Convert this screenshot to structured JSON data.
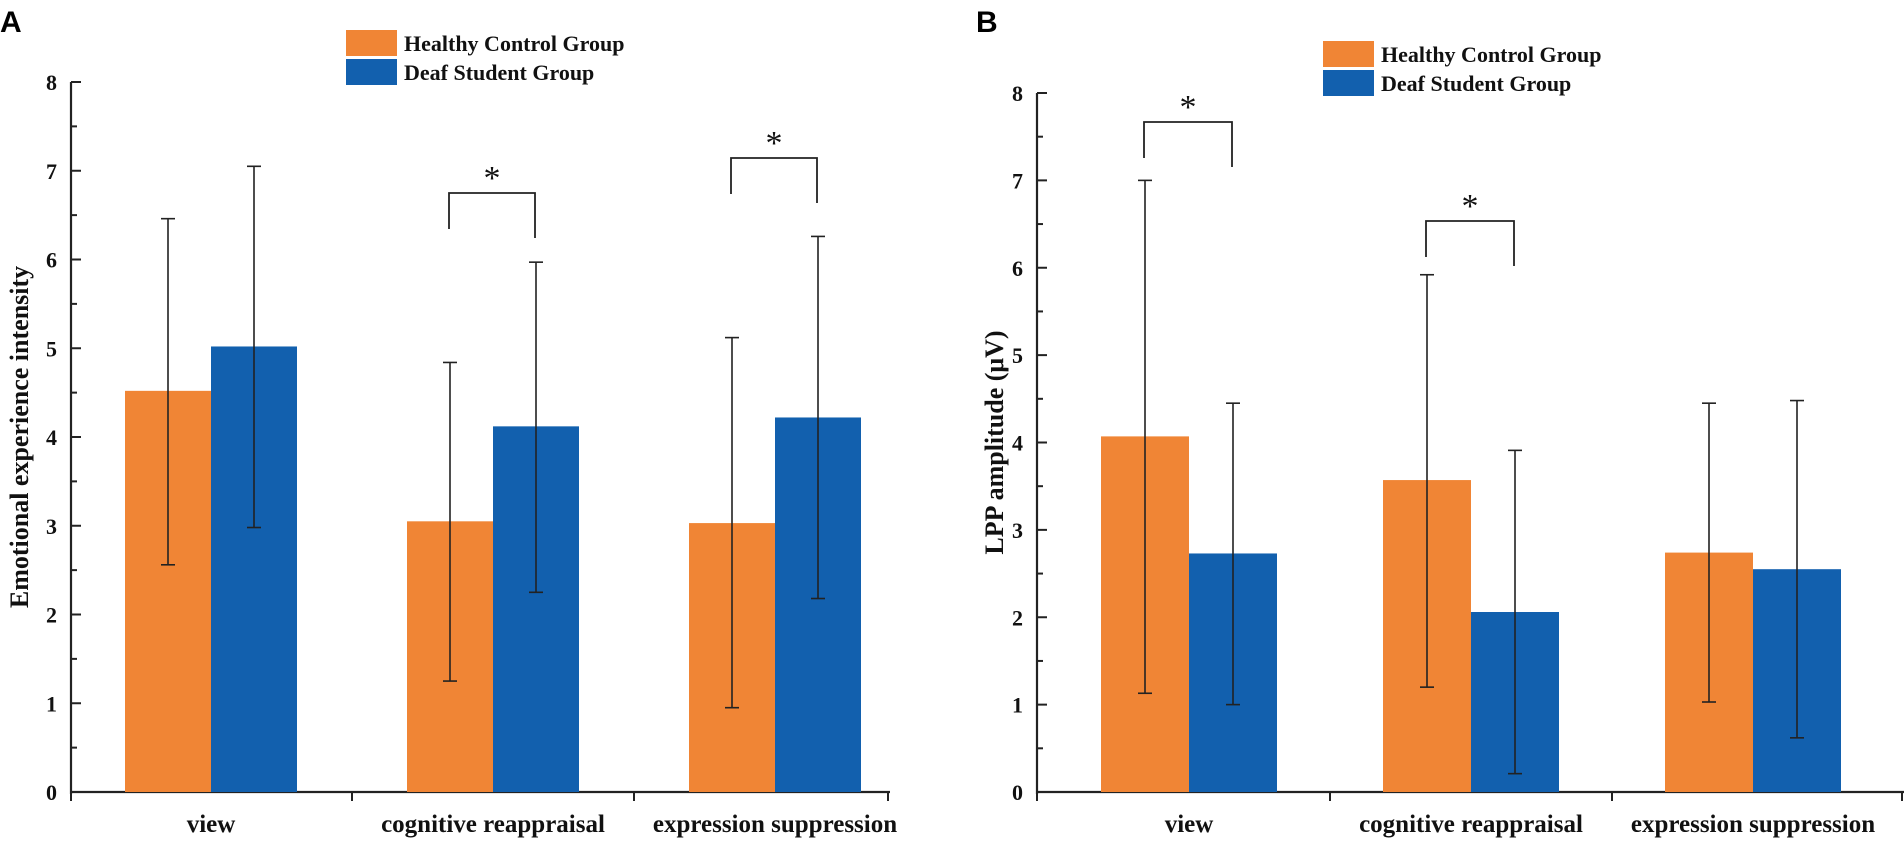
{
  "colors": {
    "healthy": "#F08535",
    "deaf": "#1260AE"
  },
  "chart_data": [
    {
      "panel": "A",
      "type": "bar",
      "title": "",
      "xlabel": "",
      "ylabel": "Emotional experience intensity",
      "ylim": [
        0,
        8
      ],
      "yticks": [
        0,
        1,
        2,
        3,
        4,
        5,
        6,
        7,
        8
      ],
      "categories": [
        "view",
        "cognitive reappraisal",
        "expression suppression"
      ],
      "legend": [
        "Healthy Control Group",
        "Deaf Student Group"
      ],
      "legend_position": "top-center",
      "series": [
        {
          "name": "Healthy Control Group",
          "values": [
            4.52,
            3.05,
            3.03
          ],
          "err_low": [
            2.56,
            1.25,
            0.95
          ],
          "err_high": [
            6.46,
            4.84,
            5.12
          ]
        },
        {
          "name": "Deaf Student Group",
          "values": [
            5.02,
            4.12,
            4.22
          ],
          "err_low": [
            2.98,
            2.25,
            2.18
          ],
          "err_high": [
            7.05,
            5.97,
            6.26
          ]
        }
      ],
      "significance": [
        {
          "category": 1,
          "label": "*"
        },
        {
          "category": 2,
          "label": "*"
        }
      ]
    },
    {
      "panel": "B",
      "type": "bar",
      "title": "",
      "xlabel": "",
      "ylabel": "LPP amplitude (μV)",
      "ylim": [
        0,
        8
      ],
      "yticks": [
        0,
        1,
        2,
        3,
        4,
        5,
        6,
        7,
        8
      ],
      "categories": [
        "view",
        "cognitive reappraisal",
        "expression suppression"
      ],
      "legend": [
        "Healthy Control Group",
        "Deaf Student Group"
      ],
      "legend_position": "top-center",
      "series": [
        {
          "name": "Healthy Control Group",
          "values": [
            4.07,
            3.57,
            2.74
          ],
          "err_low": [
            1.13,
            1.2,
            1.03
          ],
          "err_high": [
            7.0,
            5.92,
            4.45
          ]
        },
        {
          "name": "Deaf Student Group",
          "values": [
            2.73,
            2.06,
            2.55
          ],
          "err_low": [
            1.0,
            0.21,
            0.62
          ],
          "err_high": [
            4.45,
            3.91,
            4.48
          ]
        }
      ],
      "significance": [
        {
          "category": 0,
          "label": "*"
        },
        {
          "category": 1,
          "label": "*"
        }
      ]
    }
  ]
}
